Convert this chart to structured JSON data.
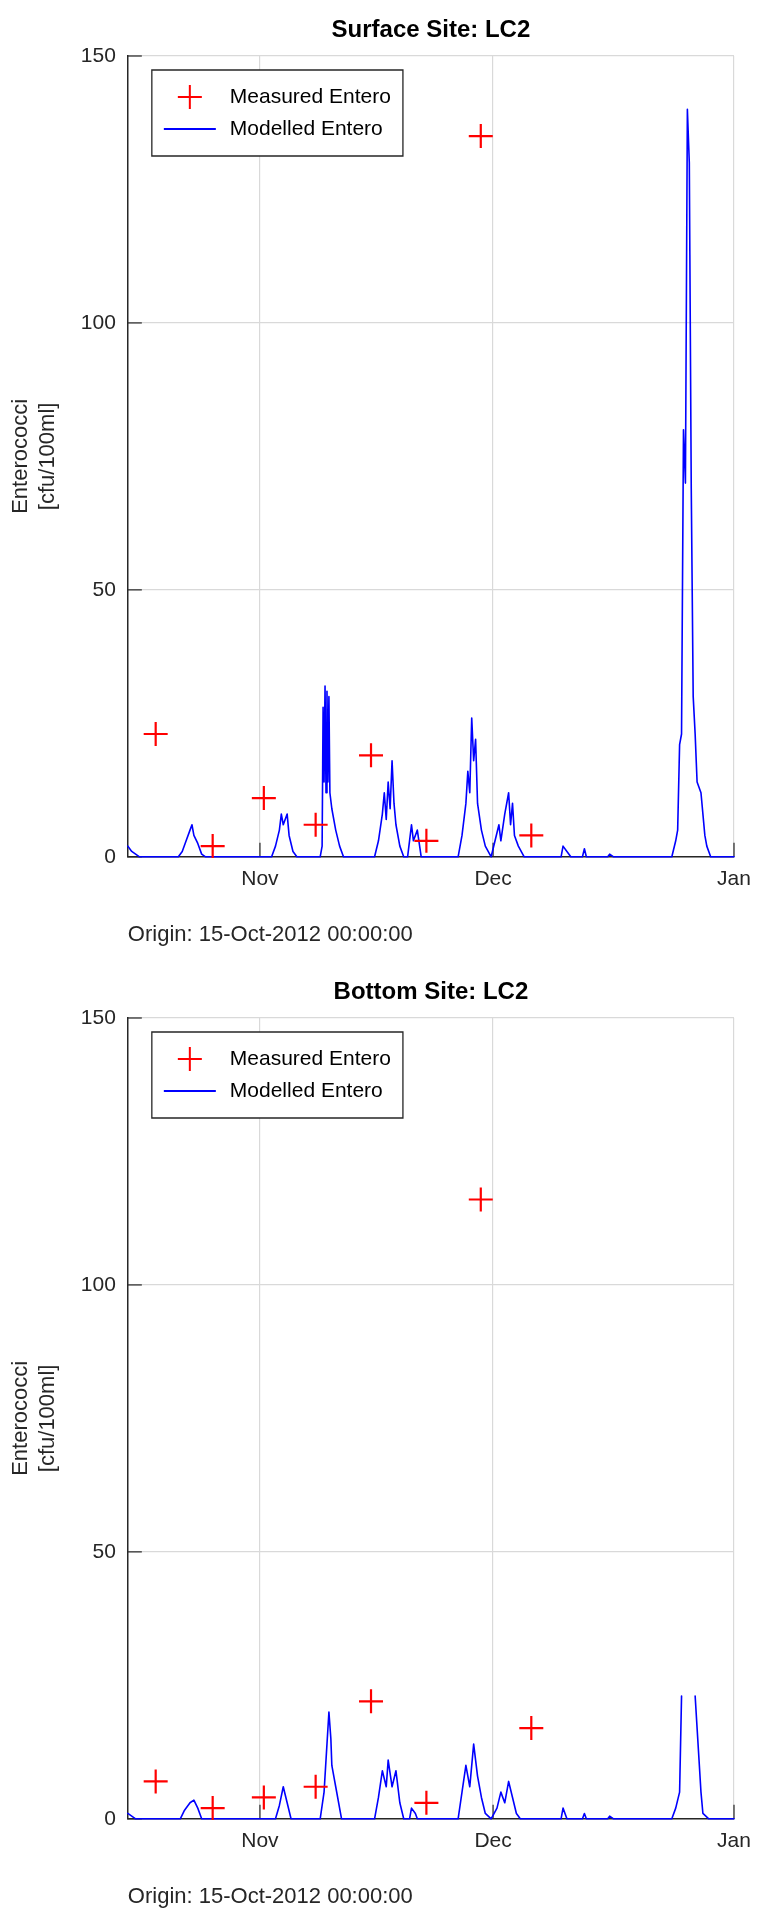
{
  "chart_data": [
    {
      "type": "line",
      "title": "Surface Site: LC2",
      "ylabel": "Enterococci [cfu/100ml]",
      "annotations": [
        "Origin: 15-Oct-2012 00:00:00"
      ],
      "xlim": [
        "2012-10-15",
        "2013-01-01"
      ],
      "xticks": [
        {
          "value": "2012-11-01",
          "label": "Nov"
        },
        {
          "value": "2012-12-01",
          "label": "Dec"
        },
        {
          "value": "2013-01-01",
          "label": "Jan"
        }
      ],
      "ylim": [
        0,
        150
      ],
      "yticks": [
        0,
        50,
        100,
        150
      ],
      "grid": true,
      "legend": "top left",
      "series": [
        {
          "name": "Measured Entero",
          "type": "scatter",
          "marker": "cross",
          "color": "#ff0000",
          "x": [
            "2012-10-18T14:00",
            "2012-10-25T22:00",
            "2012-11-01T12:00",
            "2012-11-08T04:00",
            "2012-11-15T07:00",
            "2012-11-22T10:00",
            "2012-11-29T10:00",
            "2012-12-05T22:00"
          ],
          "values": [
            23,
            2,
            11,
            6,
            19,
            3,
            135,
            4
          ]
        },
        {
          "name": "Modelled Entero",
          "type": "line",
          "marker": "none",
          "color": "#0000ff",
          "x": [
            "2012-10-15T00:00",
            "2012-10-15T12:00",
            "2012-10-16T12:00",
            "2012-10-21T12:00",
            "2012-10-22T00:00",
            "2012-10-22T12:00",
            "2012-10-23T00:00",
            "2012-10-23T06:00",
            "2012-10-23T12:00",
            "2012-10-24T00:00",
            "2012-10-24T12:00",
            "2012-10-25T00:00",
            "2012-11-02T12:00",
            "2012-11-03T00:00",
            "2012-11-03T12:00",
            "2012-11-03T18:00",
            "2012-11-04T00:00",
            "2012-11-04T12:00",
            "2012-11-04T18:00",
            "2012-11-05T06:00",
            "2012-11-05T18:00",
            "2012-11-08T18:00",
            "2012-11-09T00:00",
            "2012-11-09T03:00",
            "2012-11-09T06:00",
            "2012-11-09T09:00",
            "2012-11-09T12:00",
            "2012-11-09T15:00",
            "2012-11-09T18:00",
            "2012-11-09T21:00",
            "2012-11-10T00:00",
            "2012-11-10T06:00",
            "2012-11-10T18:00",
            "2012-11-11T06:00",
            "2012-11-11T18:00",
            "2012-11-15T18:00",
            "2012-11-16T06:00",
            "2012-11-16T18:00",
            "2012-11-17T00:00",
            "2012-11-17T06:00",
            "2012-11-17T12:00",
            "2012-11-17T18:00",
            "2012-11-18T00:00",
            "2012-11-18T06:00",
            "2012-11-18T12:00",
            "2012-11-19T00:00",
            "2012-11-19T12:00",
            "2012-11-20T00:00",
            "2012-11-20T06:00",
            "2012-11-20T12:00",
            "2012-11-20T18:00",
            "2012-11-21T06:00",
            "2012-11-21T18:00",
            "2012-11-26T12:00",
            "2012-11-27T00:00",
            "2012-11-27T12:00",
            "2012-11-27T18:00",
            "2012-11-28T00:00",
            "2012-11-28T06:00",
            "2012-11-28T12:00",
            "2012-11-28T18:00",
            "2012-11-29T00:00",
            "2012-11-29T12:00",
            "2012-11-30T00:00",
            "2012-11-30T18:00",
            "2012-12-01T06:00",
            "2012-12-01T18:00",
            "2012-12-02T00:00",
            "2012-12-02T12:00",
            "2012-12-03T00:00",
            "2012-12-03T06:00",
            "2012-12-03T12:00",
            "2012-12-03T18:00",
            "2012-12-04T06:00",
            "2012-12-05T00:00",
            "2012-12-09T18:00",
            "2012-12-10T00:00",
            "2012-12-10T12:00",
            "2012-12-11T00:00",
            "2012-12-12T12:00",
            "2012-12-12T18:00",
            "2012-12-13T00:00",
            "2012-12-15T18:00",
            "2012-12-16T00:00",
            "2012-12-16T12:00",
            "2012-12-24T00:00",
            "2012-12-24T12:00",
            "2012-12-24T18:00",
            "2012-12-25T00:00",
            "2012-12-25T06:00",
            "2012-12-25T12:00",
            "2012-12-25T18:00",
            "2012-12-26T00:00",
            "2012-12-26T06:00",
            "2012-12-26T12:00",
            "2012-12-26T18:00",
            "2012-12-27T00:00",
            "2012-12-27T06:00",
            "2012-12-27T18:00",
            "2012-12-28T06:00",
            "2012-12-28T12:00",
            "2012-12-29T00:00",
            "2013-01-01T00:00"
          ],
          "values": [
            2,
            1,
            0,
            0,
            1,
            3,
            5,
            6,
            4,
            2.5,
            0.5,
            0,
            0,
            2,
            5,
            8,
            6,
            8,
            4,
            1,
            0,
            0,
            2,
            28,
            14,
            32,
            12,
            31,
            14,
            30,
            12,
            9,
            5,
            2,
            0,
            0,
            3,
            8,
            12,
            7,
            14,
            9,
            18,
            10,
            6,
            2,
            0,
            0,
            3,
            6,
            3,
            5,
            0,
            0,
            4,
            10,
            16,
            12,
            26,
            18,
            22,
            10,
            5,
            2,
            0,
            3,
            6,
            3,
            8,
            12,
            6,
            10,
            4,
            2,
            0,
            0,
            2,
            1,
            0,
            0,
            1.5,
            0,
            0,
            0.5,
            0,
            0,
            3,
            5,
            21,
            23,
            80,
            70,
            140,
            130,
            69,
            30,
            23,
            14,
            12,
            4,
            2,
            0,
            0
          ]
        }
      ]
    },
    {
      "type": "line",
      "title": "Bottom Site: LC2",
      "ylabel": "Enterococci [cfu/100ml]",
      "annotations": [
        "Origin: 15-Oct-2012 00:00:00"
      ],
      "xlim": [
        "2012-10-15",
        "2013-01-01"
      ],
      "xticks": [
        {
          "value": "2012-11-01",
          "label": "Nov"
        },
        {
          "value": "2012-12-01",
          "label": "Dec"
        },
        {
          "value": "2013-01-01",
          "label": "Jan"
        }
      ],
      "ylim": [
        0,
        150
      ],
      "yticks": [
        0,
        50,
        100,
        150
      ],
      "grid": true,
      "legend": "top left",
      "series": [
        {
          "name": "Measured Entero",
          "type": "scatter",
          "marker": "cross",
          "color": "#ff0000",
          "x": [
            "2012-10-18T14:00",
            "2012-10-25T22:00",
            "2012-11-01T12:00",
            "2012-11-08T04:00",
            "2012-11-15T07:00",
            "2012-11-22T10:00",
            "2012-11-29T10:00",
            "2012-12-05T22:00"
          ],
          "values": [
            7,
            2,
            4,
            6,
            22,
            3,
            116,
            17
          ]
        },
        {
          "name": "Modelled Entero",
          "type": "line",
          "marker": "none",
          "color": "#0000ff",
          "x": [
            "2012-10-15T00:00",
            "2012-10-16T00:00",
            "2012-10-21T18:00",
            "2012-10-22T06:00",
            "2012-10-23T00:00",
            "2012-10-23T12:00",
            "2012-10-24T00:00",
            "2012-10-24T12:00",
            "2012-11-03T00:00",
            "2012-11-03T12:00",
            "2012-11-04T00:00",
            "2012-11-04T12:00",
            "2012-11-05T00:00",
            "2012-11-08T18:00",
            "2012-11-09T06:00",
            "2012-11-09T21:00",
            "2012-11-10T03:00",
            "2012-11-10T06:00",
            "2012-11-10T18:00",
            "2012-11-11T12:00",
            "2012-11-15T18:00",
            "2012-11-16T06:00",
            "2012-11-16T18:00",
            "2012-11-17T06:00",
            "2012-11-17T12:00",
            "2012-11-18T00:00",
            "2012-11-18T12:00",
            "2012-11-19T00:00",
            "2012-11-19T12:00",
            "2012-11-20T06:00",
            "2012-11-20T12:00",
            "2012-11-21T00:00",
            "2012-11-21T06:00",
            "2012-11-26T12:00",
            "2012-11-27T00:00",
            "2012-11-27T12:00",
            "2012-11-28T00:00",
            "2012-11-28T12:00",
            "2012-11-29T00:00",
            "2012-11-29T12:00",
            "2012-11-30T00:00",
            "2012-11-30T18:00",
            "2012-12-01T12:00",
            "2012-12-02T00:00",
            "2012-12-02T12:00",
            "2012-12-03T00:00",
            "2012-12-03T12:00",
            "2012-12-04T00:00",
            "2012-12-04T12:00",
            "2012-12-09T18:00",
            "2012-12-10T00:00",
            "2012-12-10T12:00",
            "2012-12-12T12:00",
            "2012-12-12T18:00",
            "2012-12-13T00:00",
            "2012-12-15T18:00",
            "2012-12-16T00:00",
            "2012-12-16T12:00",
            "2012-12-24T00:00",
            "2012-12-24T12:00",
            "2012-12-25T00:00",
            "2012-12-25T06:00",
            "2012-12-26T06:00",
            "2012-12-27T00:00",
            "2012-12-27T12:00",
            "2012-12-27T18:00",
            "2012-12-28T00:00",
            "2012-12-28T18:00",
            "2013-01-01T00:00"
          ],
          "values": [
            1,
            0,
            0,
            1.5,
            3,
            3.5,
            2,
            0,
            0,
            2.5,
            6,
            3,
            0,
            0,
            5,
            20,
            15,
            10,
            6,
            0,
            0,
            4,
            9,
            6,
            11,
            6,
            9,
            3,
            0,
            0,
            2,
            1,
            0,
            0,
            5,
            10,
            6,
            14,
            8,
            4,
            1,
            0,
            2,
            5,
            3,
            7,
            4,
            1,
            0,
            0,
            2,
            0,
            0,
            1,
            0,
            0,
            0.5,
            0,
            0,
            2,
            5,
            23,
            null,
            23,
            11,
            5,
            1,
            0,
            0
          ]
        }
      ]
    }
  ]
}
